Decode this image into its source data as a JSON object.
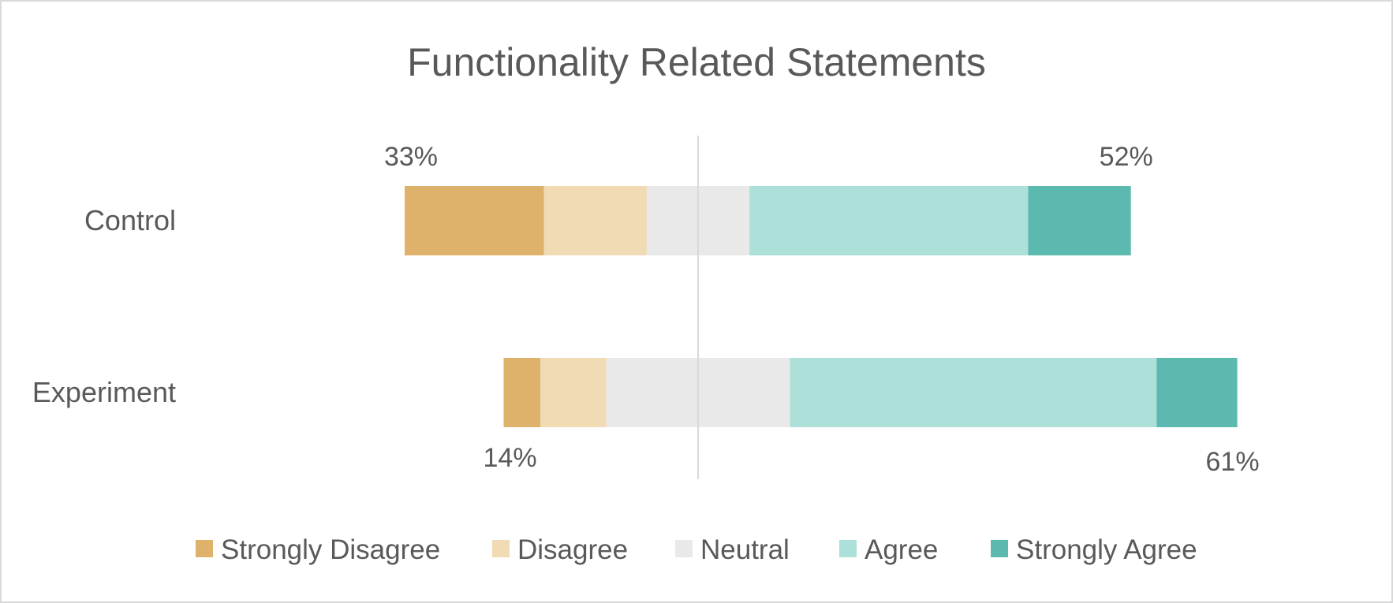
{
  "chart_data": {
    "type": "bar",
    "subtype": "diverging-stacked-horizontal",
    "title": "Functionality Related Statements",
    "categories": [
      "Control",
      "Experiment"
    ],
    "series": [
      {
        "name": "Strongly Disagree",
        "color": "#DFB26B",
        "values": [
          19,
          5
        ]
      },
      {
        "name": "Disagree",
        "color": "#F0DBB4",
        "values": [
          14,
          9
        ]
      },
      {
        "name": "Neutral",
        "color": "#E8E9E8",
        "values": [
          14,
          25
        ]
      },
      {
        "name": "Agree",
        "color": "#ACE0D9",
        "values": [
          38,
          50
        ]
      },
      {
        "name": "Strongly Agree",
        "color": "#5CB9AF",
        "values": [
          14,
          11
        ]
      }
    ],
    "summary_labels": [
      {
        "category": "Control",
        "disagree": "33%",
        "agree": "52%"
      },
      {
        "category": "Experiment",
        "disagree": "14%",
        "agree": "61%"
      }
    ],
    "legend_position": "bottom",
    "grid": false,
    "center_line": "neutral midpoint"
  }
}
